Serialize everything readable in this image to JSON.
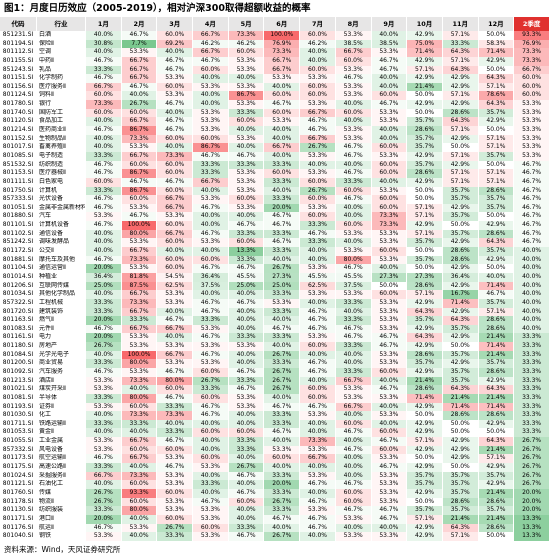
{
  "title": "图1：月度日历效应（2005-2019），相对沪深300取得超额收益的概率",
  "table": {
    "header": [
      "代码",
      "行业",
      "1月",
      "2月",
      "3月",
      "4月",
      "5月",
      "6月",
      "7月",
      "8月",
      "9月",
      "10月",
      "11月",
      "12月",
      "2季度"
    ],
    "rows": [
      [
        "851231.SI",
        "白酒",
        "40.0%",
        "46.7%",
        "60.0%",
        "66.7%",
        "73.3%",
        "100.0%",
        "60.0%",
        "53.3%",
        "40.0%",
        "42.9%",
        "57.1%",
        "50.0%",
        "93.3%"
      ],
      [
        "801194.SI",
        "保险Ⅱ",
        "30.8%",
        "7.7%",
        "69.2%",
        "46.2%",
        "46.2%",
        "76.9%",
        "46.2%",
        "38.5%",
        "38.5%",
        "75.0%",
        "33.3%",
        "58.3%",
        "76.9%"
      ],
      [
        "801112.SI",
        "空调",
        "40.0%",
        "53.3%",
        "40.0%",
        "66.7%",
        "60.0%",
        "73.3%",
        "40.0%",
        "66.7%",
        "53.3%",
        "71.4%",
        "64.3%",
        "71.4%",
        "73.3%"
      ],
      [
        "801155.SI",
        "中药Ⅱ",
        "46.7%",
        "66.7%",
        "46.7%",
        "46.7%",
        "53.3%",
        "66.7%",
        "40.0%",
        "60.0%",
        "46.7%",
        "42.9%",
        "57.1%",
        "42.9%",
        "73.3%"
      ],
      [
        "851243.SI",
        "乳品",
        "33.3%",
        "66.7%",
        "46.7%",
        "60.0%",
        "53.3%",
        "66.7%",
        "60.0%",
        "53.3%",
        "46.7%",
        "57.1%",
        "64.3%",
        "50.0%",
        "66.7%"
      ],
      [
        "801151.SI",
        "化学制药",
        "46.7%",
        "66.7%",
        "53.3%",
        "40.0%",
        "40.0%",
        "53.3%",
        "53.3%",
        "46.7%",
        "40.0%",
        "42.9%",
        "42.9%",
        "64.3%",
        "60.0%"
      ],
      [
        "801156.SI",
        "医疗服务Ⅱ",
        "66.7%",
        "46.7%",
        "60.0%",
        "53.3%",
        "53.3%",
        "40.0%",
        "60.0%",
        "53.3%",
        "40.0%",
        "21.4%",
        "42.9%",
        "57.1%",
        "60.0%"
      ],
      [
        "801124.SI",
        "饲料Ⅱ",
        "60.0%",
        "40.0%",
        "53.3%",
        "40.0%",
        "86.7%",
        "60.0%",
        "60.0%",
        "53.3%",
        "60.0%",
        "50.0%",
        "57.1%",
        "78.6%",
        "60.0%"
      ],
      [
        "801780.SI",
        "银行",
        "73.3%",
        "26.7%",
        "46.7%",
        "40.0%",
        "53.3%",
        "46.7%",
        "53.3%",
        "40.0%",
        "46.7%",
        "42.9%",
        "42.9%",
        "64.3%",
        "53.3%"
      ],
      [
        "801740.SI",
        "国防军工",
        "60.0%",
        "60.0%",
        "40.0%",
        "53.3%",
        "33.3%",
        "60.0%",
        "66.7%",
        "60.0%",
        "53.3%",
        "50.0%",
        "28.6%",
        "35.7%",
        "53.3%"
      ],
      [
        "801120.SI",
        "食品加工",
        "40.0%",
        "66.7%",
        "46.7%",
        "53.3%",
        "60.0%",
        "53.3%",
        "46.7%",
        "40.0%",
        "53.3%",
        "35.7%",
        "64.3%",
        "42.9%",
        "53.3%"
      ],
      [
        "801214.SI",
        "医药商业Ⅱ",
        "46.7%",
        "86.7%",
        "46.7%",
        "53.3%",
        "40.0%",
        "40.0%",
        "46.7%",
        "53.3%",
        "40.0%",
        "28.6%",
        "57.1%",
        "50.0%",
        "53.3%"
      ],
      [
        "801152.SI",
        "生物制品Ⅱ",
        "40.0%",
        "73.3%",
        "60.0%",
        "60.0%",
        "53.3%",
        "40.0%",
        "66.7%",
        "53.3%",
        "40.0%",
        "35.7%",
        "42.9%",
        "57.1%",
        "53.3%"
      ],
      [
        "801017.SI",
        "畜禽养殖Ⅱ",
        "40.0%",
        "53.3%",
        "40.0%",
        "86.7%",
        "40.0%",
        "66.7%",
        "26.7%",
        "46.7%",
        "60.0%",
        "35.7%",
        "50.0%",
        "57.1%",
        "53.3%"
      ],
      [
        "801085.SI",
        "电子制造",
        "33.3%",
        "66.7%",
        "73.3%",
        "46.7%",
        "46.7%",
        "40.0%",
        "53.3%",
        "46.7%",
        "53.3%",
        "42.9%",
        "57.1%",
        "35.7%",
        "53.3%"
      ],
      [
        "851532.SI",
        "纺织制造",
        "46.7%",
        "60.0%",
        "60.0%",
        "33.3%",
        "33.3%",
        "33.3%",
        "40.0%",
        "40.0%",
        "60.0%",
        "35.7%",
        "42.9%",
        "50.0%",
        "46.7%"
      ],
      [
        "801153.SI",
        "医疗器械Ⅱ",
        "46.7%",
        "86.7%",
        "60.0%",
        "33.3%",
        "53.3%",
        "60.0%",
        "53.3%",
        "46.7%",
        "60.0%",
        "28.6%",
        "57.1%",
        "57.1%",
        "46.7%"
      ],
      [
        "801111.SI",
        "白色家电",
        "60.0%",
        "46.7%",
        "46.7%",
        "66.7%",
        "53.3%",
        "33.3%",
        "60.0%",
        "33.3%",
        "40.0%",
        "42.9%",
        "57.1%",
        "57.1%",
        "46.7%"
      ],
      [
        "801750.SI",
        "计算机",
        "33.3%",
        "86.7%",
        "60.0%",
        "40.0%",
        "53.3%",
        "40.0%",
        "26.7%",
        "60.0%",
        "53.3%",
        "50.0%",
        "35.7%",
        "28.6%",
        "46.7%"
      ],
      [
        "857333.SI",
        "光伏设备",
        "46.7%",
        "60.0%",
        "66.7%",
        "53.3%",
        "60.0%",
        "33.3%",
        "60.0%",
        "46.7%",
        "60.0%",
        "50.0%",
        "35.7%",
        "35.7%",
        "46.7%"
      ],
      [
        "801051.SI",
        "金属非金属新材料",
        "46.7%",
        "53.3%",
        "66.7%",
        "46.7%",
        "53.3%",
        "20.0%",
        "53.3%",
        "40.0%",
        "60.0%",
        "57.1%",
        "42.9%",
        "35.7%",
        "46.7%"
      ],
      [
        "801880.SI",
        "汽车",
        "53.3%",
        "46.7%",
        "53.3%",
        "40.0%",
        "40.0%",
        "46.7%",
        "60.0%",
        "40.0%",
        "73.3%",
        "57.1%",
        "35.7%",
        "50.0%",
        "46.7%"
      ],
      [
        "801101.SI",
        "计算机设备",
        "46.7%",
        "100.0%",
        "60.0%",
        "40.0%",
        "46.7%",
        "46.7%",
        "33.3%",
        "60.0%",
        "73.3%",
        "42.9%",
        "50.0%",
        "42.9%",
        "46.7%"
      ],
      [
        "801102.SI",
        "通信设备",
        "40.0%",
        "80.0%",
        "66.7%",
        "46.7%",
        "33.3%",
        "33.3%",
        "46.7%",
        "53.3%",
        "53.3%",
        "57.1%",
        "35.7%",
        "28.6%",
        "46.7%"
      ],
      [
        "851242.SI",
        "调味发酵品",
        "40.0%",
        "53.3%",
        "60.0%",
        "53.3%",
        "60.0%",
        "46.7%",
        "33.3%",
        "40.0%",
        "53.3%",
        "35.7%",
        "42.9%",
        "64.3%",
        "46.7%"
      ],
      [
        "801172.SI",
        "公交Ⅱ",
        "40.0%",
        "66.7%",
        "40.0%",
        "40.0%",
        "13.3%",
        "33.3%",
        "40.0%",
        "53.3%",
        "60.0%",
        "50.0%",
        "28.6%",
        "35.7%",
        "40.0%"
      ],
      [
        "801881.SI",
        "摩托车及其他",
        "46.7%",
        "73.3%",
        "60.0%",
        "60.0%",
        "33.3%",
        "40.0%",
        "40.0%",
        "80.0%",
        "53.3%",
        "35.7%",
        "28.6%",
        "42.9%",
        "40.0%"
      ],
      [
        "801104.SI",
        "通信运营Ⅱ",
        "20.0%",
        "53.3%",
        "60.0%",
        "46.7%",
        "46.7%",
        "26.7%",
        "53.3%",
        "46.7%",
        "40.0%",
        "50.0%",
        "42.9%",
        "50.0%",
        "40.0%"
      ],
      [
        "801014.SI",
        "种植业",
        "36.4%",
        "81.8%",
        "54.5%",
        "36.4%",
        "45.5%",
        "27.3%",
        "45.5%",
        "45.5%",
        "27.3%",
        "27.3%",
        "36.4%",
        "40.0%",
        "40.0%"
      ],
      [
        "801206.SI",
        "互联网传媒",
        "25.0%",
        "87.5%",
        "62.5%",
        "37.5%",
        "25.0%",
        "25.0%",
        "62.5%",
        "37.5%",
        "50.0%",
        "28.6%",
        "42.9%",
        "71.4%",
        "40.0%"
      ],
      [
        "801034.SI",
        "其他化学制品",
        "40.0%",
        "66.7%",
        "53.3%",
        "40.0%",
        "40.0%",
        "33.3%",
        "53.3%",
        "53.3%",
        "60.0%",
        "57.1%",
        "16.7%",
        "46.7%",
        "40.0%"
      ],
      [
        "857322.SI",
        "工程机械",
        "33.3%",
        "73.3%",
        "53.3%",
        "46.7%",
        "46.7%",
        "53.3%",
        "40.0%",
        "33.3%",
        "53.3%",
        "42.9%",
        "71.4%",
        "35.7%",
        "40.0%"
      ],
      [
        "801720.SI",
        "建筑装饰",
        "33.3%",
        "66.7%",
        "40.0%",
        "46.7%",
        "40.0%",
        "33.3%",
        "46.7%",
        "40.0%",
        "53.3%",
        "64.3%",
        "42.9%",
        "57.1%",
        "40.0%"
      ],
      [
        "801163.SI",
        "燃气Ⅱ",
        "20.0%",
        "33.3%",
        "46.7%",
        "33.3%",
        "40.0%",
        "40.0%",
        "46.7%",
        "33.3%",
        "53.3%",
        "35.7%",
        "64.3%",
        "28.6%",
        "40.0%"
      ],
      [
        "801083.SI",
        "元件Ⅱ",
        "46.7%",
        "66.7%",
        "66.7%",
        "53.3%",
        "40.0%",
        "46.7%",
        "46.7%",
        "46.7%",
        "53.3%",
        "42.9%",
        "35.7%",
        "28.6%",
        "40.0%"
      ],
      [
        "801161.SI",
        "电力",
        "20.0%",
        "53.3%",
        "40.0%",
        "46.7%",
        "33.3%",
        "33.3%",
        "53.3%",
        "46.7%",
        "46.7%",
        "64.3%",
        "42.9%",
        "21.4%",
        "33.3%"
      ],
      [
        "801180.SI",
        "房地产",
        "26.7%",
        "53.3%",
        "53.3%",
        "53.3%",
        "53.3%",
        "40.0%",
        "60.0%",
        "33.3%",
        "46.7%",
        "42.9%",
        "50.0%",
        "71.4%",
        "33.3%"
      ],
      [
        "801084.SI",
        "光学光电子",
        "40.0%",
        "100.0%",
        "66.7%",
        "46.7%",
        "40.0%",
        "26.7%",
        "40.0%",
        "40.0%",
        "53.3%",
        "28.6%",
        "35.7%",
        "21.4%",
        "33.3%"
      ],
      [
        "801200.SI",
        "商业贸易",
        "33.3%",
        "80.0%",
        "53.3%",
        "53.3%",
        "40.0%",
        "33.3%",
        "46.7%",
        "40.0%",
        "53.3%",
        "35.7%",
        "42.9%",
        "35.7%",
        "33.3%"
      ],
      [
        "801092.SI",
        "汽车服务",
        "46.7%",
        "53.3%",
        "46.7%",
        "60.0%",
        "46.7%",
        "26.7%",
        "46.7%",
        "33.3%",
        "60.0%",
        "42.9%",
        "35.7%",
        "28.6%",
        "33.3%"
      ],
      [
        "801213.SI",
        "酒店Ⅱ",
        "53.3%",
        "73.3%",
        "80.0%",
        "26.7%",
        "33.3%",
        "26.7%",
        "40.0%",
        "66.7%",
        "40.0%",
        "21.4%",
        "35.7%",
        "42.9%",
        "33.3%"
      ],
      [
        "801021.SI",
        "煤炭开采Ⅱ",
        "53.3%",
        "40.0%",
        "60.0%",
        "33.3%",
        "46.7%",
        "26.7%",
        "60.0%",
        "53.3%",
        "46.7%",
        "28.6%",
        "64.3%",
        "64.3%",
        "33.3%"
      ],
      [
        "801081.SI",
        "半导体",
        "33.3%",
        "80.0%",
        "46.7%",
        "60.0%",
        "53.3%",
        "40.0%",
        "60.0%",
        "53.3%",
        "53.3%",
        "71.4%",
        "21.4%",
        "21.4%",
        "33.3%"
      ],
      [
        "801193.SI",
        "证券Ⅱ",
        "53.3%",
        "60.0%",
        "33.3%",
        "46.7%",
        "53.3%",
        "46.7%",
        "46.7%",
        "66.7%",
        "40.0%",
        "42.9%",
        "71.4%",
        "71.4%",
        "33.3%"
      ],
      [
        "801030.SI",
        "化工",
        "40.0%",
        "73.3%",
        "73.3%",
        "46.7%",
        "40.0%",
        "33.3%",
        "53.3%",
        "40.0%",
        "53.3%",
        "50.0%",
        "28.6%",
        "28.6%",
        "33.3%"
      ],
      [
        "801711.SI",
        "铁路运输Ⅱ",
        "33.3%",
        "33.3%",
        "40.0%",
        "40.0%",
        "40.0%",
        "33.3%",
        "40.0%",
        "60.0%",
        "40.0%",
        "42.9%",
        "50.0%",
        "42.9%",
        "33.3%"
      ],
      [
        "801053.SI",
        "黄金Ⅱ",
        "40.0%",
        "40.0%",
        "33.3%",
        "60.0%",
        "60.0%",
        "46.7%",
        "40.0%",
        "46.7%",
        "60.0%",
        "42.9%",
        "50.0%",
        "50.0%",
        "33.3%"
      ],
      [
        "801055.SI",
        "工业金属",
        "53.3%",
        "66.7%",
        "46.7%",
        "40.0%",
        "33.3%",
        "40.0%",
        "73.3%",
        "40.0%",
        "46.7%",
        "57.1%",
        "42.9%",
        "64.3%",
        "26.7%"
      ],
      [
        "857332.SI",
        "风电设备",
        "53.3%",
        "60.0%",
        "60.0%",
        "40.0%",
        "33.3%",
        "53.3%",
        "53.3%",
        "46.7%",
        "60.0%",
        "42.9%",
        "42.9%",
        "21.4%",
        "26.7%"
      ],
      [
        "801173.SI",
        "航空运输Ⅱ",
        "46.7%",
        "66.7%",
        "53.3%",
        "60.0%",
        "40.0%",
        "60.0%",
        "66.7%",
        "40.0%",
        "53.3%",
        "50.0%",
        "42.9%",
        "57.1%",
        "26.7%"
      ],
      [
        "801175.SI",
        "高速公路Ⅱ",
        "33.3%",
        "40.0%",
        "46.7%",
        "53.3%",
        "26.7%",
        "40.0%",
        "40.0%",
        "40.0%",
        "46.7%",
        "42.9%",
        "50.0%",
        "42.9%",
        "26.7%"
      ],
      [
        "801024.SI",
        "采掘服务Ⅱ",
        "66.7%",
        "73.3%",
        "53.3%",
        "40.0%",
        "46.7%",
        "33.3%",
        "53.3%",
        "40.0%",
        "53.3%",
        "35.7%",
        "35.7%",
        "35.7%",
        "26.7%"
      ],
      [
        "801121.SI",
        "石油化工",
        "40.0%",
        "60.0%",
        "53.3%",
        "33.3%",
        "40.0%",
        "20.0%",
        "46.7%",
        "46.7%",
        "53.3%",
        "35.7%",
        "35.7%",
        "42.9%",
        "26.7%"
      ],
      [
        "801760.SI",
        "传媒",
        "26.7%",
        "93.3%",
        "60.0%",
        "40.0%",
        "46.7%",
        "33.3%",
        "40.0%",
        "60.0%",
        "53.3%",
        "42.9%",
        "35.7%",
        "21.4%",
        "20.0%"
      ],
      [
        "801178.SI",
        "物流Ⅱ",
        "26.7%",
        "60.0%",
        "53.3%",
        "46.7%",
        "60.0%",
        "26.7%",
        "46.7%",
        "60.0%",
        "53.3%",
        "50.0%",
        "28.6%",
        "28.6%",
        "20.0%"
      ],
      [
        "801130.SI",
        "纺织服装",
        "33.3%",
        "80.0%",
        "53.3%",
        "53.3%",
        "40.0%",
        "33.3%",
        "53.3%",
        "46.7%",
        "46.7%",
        "35.7%",
        "35.7%",
        "35.7%",
        "20.0%"
      ],
      [
        "801171.SI",
        "港口Ⅱ",
        "20.0%",
        "40.0%",
        "60.0%",
        "53.3%",
        "40.0%",
        "46.7%",
        "46.7%",
        "53.3%",
        "46.7%",
        "57.1%",
        "21.4%",
        "21.4%",
        "13.3%"
      ],
      [
        "801176.SI",
        "航运Ⅱ",
        "46.7%",
        "53.3%",
        "26.7%",
        "60.0%",
        "33.3%",
        "40.0%",
        "46.7%",
        "40.0%",
        "40.0%",
        "42.9%",
        "64.3%",
        "28.6%",
        "13.3%"
      ],
      [
        "801040.SI",
        "钢铁",
        "53.3%",
        "40.0%",
        "33.3%",
        "53.3%",
        "46.7%",
        "26.7%",
        "40.0%",
        "53.3%",
        "53.3%",
        "42.9%",
        "57.1%",
        "50.0%",
        "13.3%"
      ]
    ]
  },
  "source": "资料来源：Wind，天风证券研究所"
}
